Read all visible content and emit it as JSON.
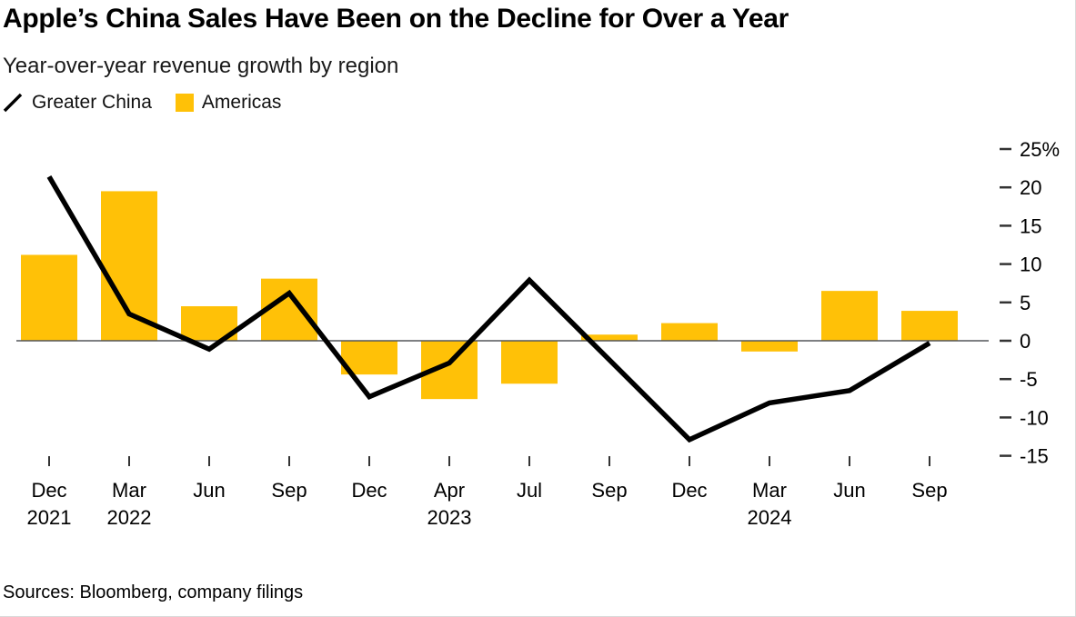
{
  "header": {
    "title": "Apple’s China Sales Have Been on the Decline for Over a Year",
    "subtitle": "Year-over-year revenue growth by region"
  },
  "legend": [
    {
      "label": "Greater China",
      "type": "line",
      "color": "#000000",
      "icon": "diagonal-line-icon"
    },
    {
      "label": "Americas",
      "type": "bar",
      "color": "#FFC107",
      "icon": "square-swatch-icon"
    }
  ],
  "footer": {
    "sources": "Sources: Bloomberg, company filings"
  },
  "colors": {
    "bar": "#FFC107",
    "line": "#000000",
    "zero_axis": "#54565a",
    "tick": "#333333",
    "text": "#000000"
  },
  "chart_data": {
    "type": "bar+line combo",
    "title": "Apple’s China Sales Have Been on the Decline for Over a Year",
    "subtitle": "Year-over-year revenue growth by region",
    "categories": [
      "Dec 2021",
      "Mar 2022",
      "Jun 2022",
      "Sep 2022",
      "Dec 2022",
      "Apr 2023",
      "Jul 2023",
      "Sep 2023",
      "Dec 2023",
      "Mar 2024",
      "Jun 2024",
      "Sep 2024"
    ],
    "x_tick_labels": [
      {
        "month": "Dec",
        "year": "2021"
      },
      {
        "month": "Mar",
        "year": "2022"
      },
      {
        "month": "Jun",
        "year": ""
      },
      {
        "month": "Sep",
        "year": ""
      },
      {
        "month": "Dec",
        "year": ""
      },
      {
        "month": "Apr",
        "year": "2023"
      },
      {
        "month": "Jul",
        "year": ""
      },
      {
        "month": "Sep",
        "year": ""
      },
      {
        "month": "Dec",
        "year": ""
      },
      {
        "month": "Mar",
        "year": "2024"
      },
      {
        "month": "Jun",
        "year": ""
      },
      {
        "month": "Sep",
        "year": ""
      }
    ],
    "series": [
      {
        "name": "Greater China",
        "type": "line",
        "color": "#000000",
        "values": [
          21.4,
          3.5,
          -1.1,
          6.2,
          -7.3,
          -2.9,
          7.9,
          -2.5,
          -12.9,
          -8.1,
          -6.5,
          -0.3
        ]
      },
      {
        "name": "Americas",
        "type": "bar",
        "color": "#FFC107",
        "values": [
          11.2,
          19.5,
          4.5,
          8.1,
          -4.4,
          -7.6,
          -5.6,
          0.8,
          2.3,
          -1.4,
          6.5,
          3.9
        ]
      }
    ],
    "xlabel": "",
    "ylabel": "",
    "y_axis": {
      "side": "right",
      "min": -15,
      "max": 25,
      "tick_values": [
        25,
        20,
        15,
        10,
        5,
        0,
        -5,
        -10,
        -15
      ],
      "tick_labels": [
        "25%",
        "20",
        "15",
        "10",
        "5",
        "0",
        "-5",
        "-10",
        "-15"
      ],
      "unit": "percent"
    },
    "grid": false,
    "baseline": 0,
    "legend_position": "top-left"
  }
}
